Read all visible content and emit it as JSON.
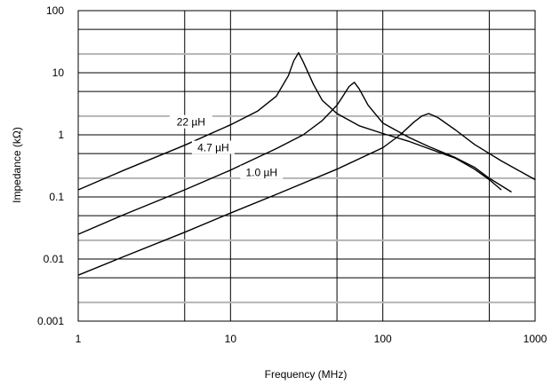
{
  "chart_data": {
    "type": "line",
    "xlabel": "Frequency (MHz)",
    "ylabel": "Impedance (kΩ)",
    "xscale": "log",
    "yscale": "log",
    "xlim": [
      1,
      1000
    ],
    "ylim": [
      0.001,
      100
    ],
    "grid": true,
    "x_tick_labels": [
      "1",
      "10",
      "100",
      "1000"
    ],
    "y_tick_labels": [
      "100",
      "10",
      "1",
      "0.1",
      "0.01",
      "0.001"
    ],
    "series": [
      {
        "name": "22 µH",
        "x": [
          1,
          2,
          5,
          10,
          15,
          20,
          24,
          26,
          28,
          30,
          35,
          40,
          50,
          70,
          100,
          150,
          200,
          300,
          400,
          500,
          600
        ],
        "y": [
          0.13,
          0.27,
          0.68,
          1.45,
          2.4,
          4.2,
          9.0,
          15.5,
          21,
          15,
          6.5,
          3.6,
          2.2,
          1.4,
          1.05,
          0.78,
          0.6,
          0.42,
          0.28,
          0.19,
          0.13
        ]
      },
      {
        "name": "4.7 µH",
        "x": [
          1,
          2,
          5,
          10,
          20,
          30,
          40,
          50,
          55,
          60,
          65,
          70,
          80,
          100,
          150,
          200,
          300,
          400,
          500,
          700
        ],
        "y": [
          0.025,
          0.052,
          0.13,
          0.27,
          0.6,
          1.0,
          1.7,
          3.0,
          4.3,
          6.0,
          7.0,
          5.5,
          3.0,
          1.55,
          0.9,
          0.65,
          0.43,
          0.3,
          0.2,
          0.12
        ]
      },
      {
        "name": "1.0 µH",
        "x": [
          1,
          2,
          5,
          10,
          20,
          50,
          100,
          130,
          160,
          180,
          200,
          230,
          300,
          400,
          600,
          1000
        ],
        "y": [
          0.0055,
          0.011,
          0.027,
          0.055,
          0.11,
          0.28,
          0.62,
          1.0,
          1.6,
          2.0,
          2.2,
          1.9,
          1.2,
          0.7,
          0.38,
          0.19
        ]
      }
    ]
  }
}
